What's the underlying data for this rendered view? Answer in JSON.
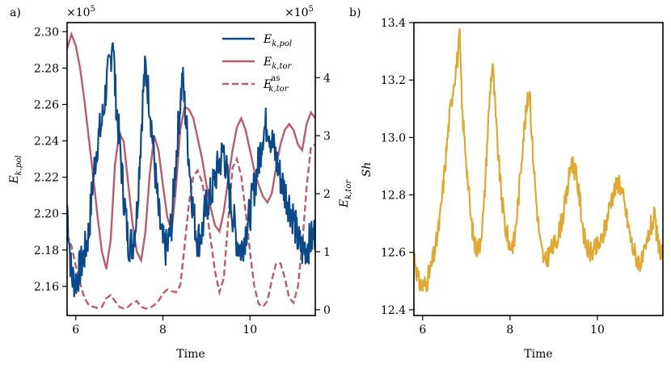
{
  "chart_data": [
    {
      "panel_label": "a)",
      "type": "line",
      "xlabel": "Time",
      "xlim": [
        5.8,
        11.5
      ],
      "xticks": [
        6,
        8,
        10
      ],
      "left_axis": {
        "label": "E_{k,pol}",
        "label_main": "E",
        "label_sub": "k,pol",
        "ylim": [
          2.144,
          2.305
        ],
        "ticks": [
          "2.16",
          "2.18",
          "2.20",
          "2.22",
          "2.24",
          "2.26",
          "2.28",
          "2.30"
        ],
        "tick_values": [
          2.16,
          2.18,
          2.2,
          2.22,
          2.24,
          2.26,
          2.28,
          2.3
        ],
        "scale": "×10",
        "scale_exp": "5"
      },
      "right_axis": {
        "label": "E_{k,tor}",
        "label_main": "E",
        "label_sub": "k,tor",
        "ylim": [
          -0.1,
          4.95
        ],
        "ticks": [
          "0",
          "1",
          "2",
          "3",
          "4"
        ],
        "tick_values": [
          0,
          1,
          2,
          3,
          4
        ],
        "scale": "×10",
        "scale_exp": "5"
      },
      "legend": [
        {
          "main": "E",
          "sub": "k,pol",
          "sup": "",
          "color": "#0a4a8c",
          "dash": false
        },
        {
          "main": "E",
          "sub": "k,tor",
          "sup": "",
          "color": "#bc5b6a",
          "dash": false
        },
        {
          "main": "E",
          "sub": "k,tor",
          "sup": "as",
          "color": "#bc5b6a",
          "dash": true
        }
      ],
      "series": [
        {
          "name": "E_k,pol",
          "axis": "left",
          "color": "#0a4a8c",
          "x": [
            5.8,
            5.9,
            6.0,
            6.1,
            6.2,
            6.3,
            6.4,
            6.5,
            6.6,
            6.7,
            6.8,
            6.85,
            6.9,
            7.0,
            7.1,
            7.2,
            7.3,
            7.4,
            7.5,
            7.55,
            7.6,
            7.7,
            7.8,
            7.9,
            8.0,
            8.1,
            8.2,
            8.3,
            8.4,
            8.45,
            8.5,
            8.6,
            8.7,
            8.8,
            8.9,
            9.0,
            9.1,
            9.2,
            9.3,
            9.4,
            9.5,
            9.6,
            9.7,
            9.8,
            9.9,
            10.0,
            10.1,
            10.2,
            10.3,
            10.4,
            10.5,
            10.6,
            10.7,
            10.8,
            10.9,
            11.0,
            11.1,
            11.2,
            11.3,
            11.4,
            11.5
          ],
          "y": [
            2.205,
            2.165,
            2.163,
            2.17,
            2.178,
            2.19,
            2.22,
            2.24,
            2.25,
            2.27,
            2.285,
            2.3,
            2.27,
            2.24,
            2.21,
            2.185,
            2.183,
            2.2,
            2.245,
            2.268,
            2.28,
            2.26,
            2.23,
            2.2,
            2.183,
            2.18,
            2.195,
            2.23,
            2.262,
            2.275,
            2.26,
            2.23,
            2.2,
            2.185,
            2.19,
            2.205,
            2.21,
            2.22,
            2.228,
            2.235,
            2.215,
            2.2,
            2.185,
            2.18,
            2.19,
            2.2,
            2.215,
            2.228,
            2.245,
            2.25,
            2.24,
            2.23,
            2.22,
            2.212,
            2.205,
            2.198,
            2.185,
            2.18,
            2.182,
            2.185,
            2.19
          ]
        },
        {
          "name": "E_k,tor",
          "axis": "right",
          "color": "#bc5b6a",
          "x": [
            5.8,
            5.9,
            6.0,
            6.1,
            6.2,
            6.3,
            6.4,
            6.5,
            6.6,
            6.7,
            6.8,
            6.9,
            7.0,
            7.1,
            7.2,
            7.3,
            7.4,
            7.5,
            7.6,
            7.7,
            7.8,
            7.9,
            8.0,
            8.1,
            8.2,
            8.3,
            8.4,
            8.5,
            8.6,
            8.7,
            8.8,
            8.9,
            9.0,
            9.1,
            9.2,
            9.3,
            9.4,
            9.5,
            9.6,
            9.7,
            9.8,
            9.9,
            10.0,
            10.1,
            10.2,
            10.3,
            10.4,
            10.5,
            10.6,
            10.7,
            10.8,
            10.9,
            11.0,
            11.1,
            11.2,
            11.3,
            11.4,
            11.5
          ],
          "y": [
            4.5,
            4.75,
            4.55,
            4.15,
            3.6,
            2.95,
            2.3,
            1.6,
            1.0,
            0.7,
            1.2,
            2.5,
            3.05,
            2.9,
            2.2,
            1.5,
            1.0,
            0.85,
            1.35,
            2.35,
            3.0,
            2.75,
            2.15,
            1.6,
            1.35,
            2.1,
            3.1,
            3.5,
            3.45,
            3.3,
            2.95,
            2.6,
            2.15,
            1.75,
            1.45,
            1.35,
            1.7,
            2.25,
            2.75,
            3.15,
            3.3,
            3.1,
            2.75,
            2.4,
            2.15,
            1.95,
            1.85,
            2.0,
            2.45,
            2.85,
            3.1,
            3.2,
            3.1,
            2.85,
            2.75,
            3.2,
            3.4,
            3.3
          ]
        },
        {
          "name": "E_k,tor^as",
          "axis": "right",
          "color": "#bc5b6a",
          "dashed": true,
          "x": [
            5.8,
            5.9,
            6.0,
            6.1,
            6.2,
            6.3,
            6.4,
            6.5,
            6.6,
            6.7,
            6.8,
            6.9,
            7.0,
            7.1,
            7.2,
            7.3,
            7.4,
            7.5,
            7.6,
            7.7,
            7.8,
            7.9,
            8.0,
            8.1,
            8.2,
            8.3,
            8.4,
            8.5,
            8.6,
            8.7,
            8.8,
            8.9,
            9.0,
            9.1,
            9.2,
            9.3,
            9.4,
            9.5,
            9.6,
            9.7,
            9.8,
            9.9,
            10.0,
            10.1,
            10.2,
            10.3,
            10.4,
            10.5,
            10.6,
            10.7,
            10.8,
            10.9,
            11.0,
            11.1,
            11.2,
            11.3,
            11.4,
            11.5
          ],
          "y": [
            1.3,
            1.1,
            0.75,
            0.45,
            0.2,
            0.08,
            0.05,
            0.03,
            0.05,
            0.2,
            0.25,
            0.15,
            0.05,
            0.02,
            0.05,
            0.12,
            0.15,
            0.05,
            0.02,
            0.03,
            0.08,
            0.15,
            0.28,
            0.35,
            0.32,
            0.3,
            0.42,
            1.1,
            1.85,
            2.3,
            2.4,
            2.2,
            1.75,
            1.2,
            0.65,
            0.3,
            0.55,
            1.55,
            2.45,
            2.6,
            2.3,
            1.7,
            1.0,
            0.4,
            0.1,
            0.05,
            0.15,
            0.5,
            0.8,
            0.8,
            0.55,
            0.2,
            0.12,
            0.4,
            1.1,
            2.1,
            2.8,
            2.85
          ]
        }
      ]
    },
    {
      "panel_label": "b)",
      "type": "line",
      "xlabel": "Time",
      "ylabel": "Sh",
      "xlim": [
        5.8,
        11.5
      ],
      "xticks": [
        6,
        8,
        10
      ],
      "ylim": [
        12.38,
        13.4
      ],
      "yticks": [
        "12.4",
        "12.6",
        "12.8",
        "13.0",
        "13.2",
        "13.4"
      ],
      "ytick_values": [
        12.4,
        12.6,
        12.8,
        13.0,
        13.2,
        13.4
      ],
      "series": [
        {
          "name": "Sh",
          "color": "#e0a82e",
          "x": [
            5.8,
            5.9,
            6.0,
            6.1,
            6.2,
            6.3,
            6.4,
            6.5,
            6.6,
            6.7,
            6.8,
            6.85,
            6.9,
            7.0,
            7.1,
            7.2,
            7.3,
            7.4,
            7.5,
            7.55,
            7.6,
            7.7,
            7.8,
            7.9,
            8.0,
            8.1,
            8.2,
            8.3,
            8.4,
            8.45,
            8.5,
            8.6,
            8.7,
            8.8,
            8.9,
            9.0,
            9.1,
            9.2,
            9.3,
            9.4,
            9.5,
            9.6,
            9.7,
            9.8,
            9.9,
            10.0,
            10.1,
            10.2,
            10.3,
            10.4,
            10.5,
            10.6,
            10.7,
            10.8,
            10.9,
            11.0,
            11.1,
            11.2,
            11.3,
            11.4,
            11.5
          ],
          "y": [
            12.6,
            12.5,
            12.48,
            12.5,
            12.55,
            12.62,
            12.72,
            12.88,
            13.05,
            13.18,
            13.28,
            13.35,
            13.1,
            12.92,
            12.72,
            12.62,
            12.62,
            12.75,
            13.05,
            13.18,
            13.26,
            13.0,
            12.8,
            12.68,
            12.62,
            12.64,
            12.8,
            13.0,
            13.12,
            13.18,
            13.0,
            12.78,
            12.62,
            12.56,
            12.6,
            12.62,
            12.66,
            12.72,
            12.8,
            12.92,
            12.88,
            12.78,
            12.65,
            12.6,
            12.6,
            12.62,
            12.64,
            12.7,
            12.78,
            12.82,
            12.85,
            12.78,
            12.7,
            12.62,
            12.58,
            12.56,
            12.6,
            12.68,
            12.72,
            12.62,
            12.6
          ]
        }
      ]
    }
  ]
}
